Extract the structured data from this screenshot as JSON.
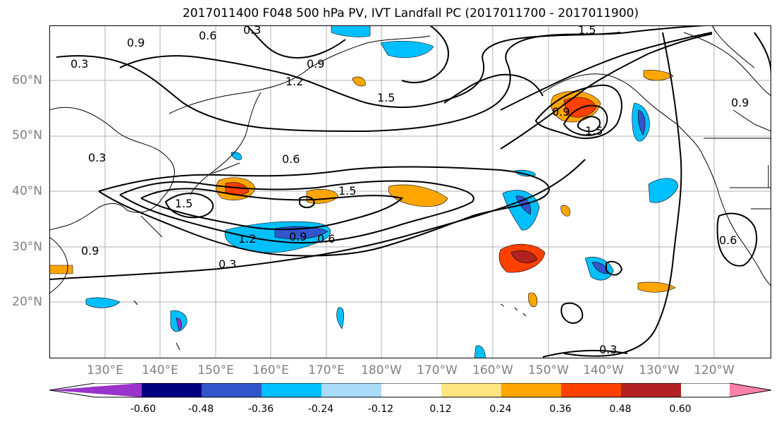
{
  "title": "2017011400 F048 500 hPa PV, IVT Landfall PC (2017011700 - 2017011900)",
  "lat_labels": [
    "60°N",
    "50°N",
    "40°N",
    "30°N",
    "20°N"
  ],
  "lon_labels": [
    "130°E",
    "140°E",
    "150°E",
    "160°E",
    "170°E",
    "180°W",
    "170°W",
    "160°W",
    "150°W",
    "140°W",
    "130°W",
    "120°W"
  ],
  "contour_labels": [
    "0.3",
    "0.6",
    "0.9",
    "1.2",
    "1.5"
  ],
  "colorbar": {
    "tick_labels": [
      "-0.60",
      "-0.48",
      "-0.36",
      "-0.24",
      "-0.12",
      "0.12",
      "0.24",
      "0.36",
      "0.48",
      "0.60"
    ],
    "colors": [
      "#9933cc",
      "#000080",
      "#3355cc",
      "#00bfff",
      "#aadcfa",
      "#ffffff",
      "#ffe680",
      "#ffa500",
      "#ff4000",
      "#b22222",
      "#ff80aa"
    ]
  }
}
